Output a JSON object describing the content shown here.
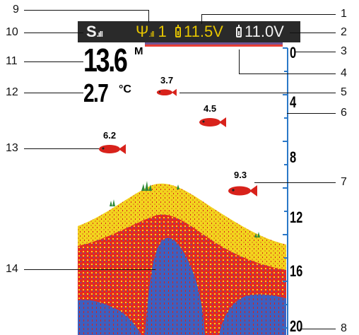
{
  "status_bar": {
    "signal": {
      "glyph": "S",
      "icon": "signal-bars-icon"
    },
    "gps": {
      "value": "1",
      "icon": "antenna-icon"
    },
    "battery_1": {
      "value": "11.5V",
      "icon": "battery-icon",
      "color": "#e5c400"
    },
    "battery_2": {
      "value": "11.0V",
      "icon": "battery-icon",
      "color": "#f2f2f2"
    }
  },
  "readouts": {
    "depth": {
      "value": "13.6",
      "unit": "M"
    },
    "temperature": {
      "value": "2.7",
      "unit": "°C"
    }
  },
  "fish": [
    {
      "label": "3.7"
    },
    {
      "label": "4.5"
    },
    {
      "label": "6.2"
    },
    {
      "label": "9.3"
    }
  ],
  "depth_scale": {
    "labels": [
      "0",
      "4",
      "8",
      "12",
      "16",
      "20"
    ]
  },
  "callouts": [
    "1",
    "2",
    "3",
    "4",
    "5",
    "6",
    "7",
    "8",
    "9",
    "10",
    "11",
    "12",
    "13",
    "14"
  ],
  "colors": {
    "water": "#ffffff",
    "bottom_core": "#3e5fbf",
    "bottom_mid": "#e52a1f",
    "bottom_edge": "#f2d41e",
    "weed": "#2f8a3a",
    "fish": "#d8221b",
    "scale": "#2a78c8"
  }
}
